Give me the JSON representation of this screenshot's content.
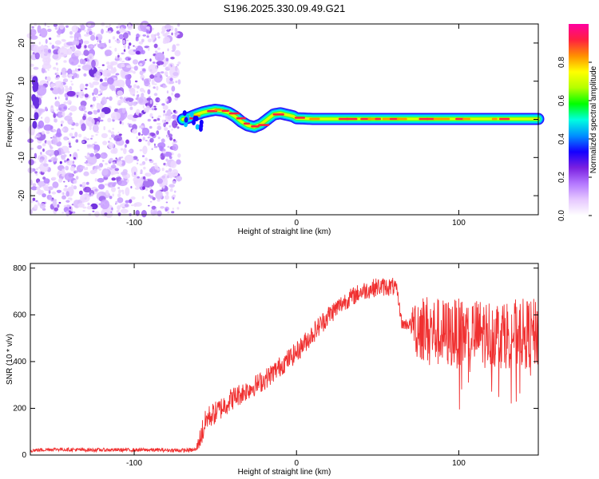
{
  "chart_data": [
    {
      "type": "heatmap",
      "title": "S196.2025.330.09.49.G21",
      "xlabel": "Height of straight line (km)",
      "ylabel": "Frequency (Hz)",
      "xlim": [
        -164,
        149
      ],
      "ylim": [
        -25,
        25
      ],
      "xticks": [
        {
          "v": -100,
          "t": "-100"
        },
        {
          "v": 0,
          "t": "0"
        },
        {
          "v": 100,
          "t": "100"
        }
      ],
      "yticks": [
        {
          "v": -20,
          "t": "-20"
        },
        {
          "v": -10,
          "t": "-10"
        },
        {
          "v": 0,
          "t": "0"
        },
        {
          "v": 10,
          "t": "10"
        },
        {
          "v": 20,
          "t": "20"
        }
      ],
      "noise_region_x": [
        -164,
        -72
      ],
      "ridge": {
        "x": [
          -70,
          -66,
          -62,
          -58,
          -54,
          -50,
          -46,
          -42,
          -38,
          -34,
          -30,
          -26,
          -22,
          -18,
          -14,
          -10,
          -6,
          -2,
          0,
          10,
          40,
          80,
          120,
          149
        ],
        "freq": [
          0.0,
          0.5,
          1.2,
          1.8,
          2.2,
          2.5,
          2.3,
          1.8,
          0.8,
          -0.6,
          -1.6,
          -2.0,
          -1.3,
          0.0,
          1.3,
          1.6,
          1.2,
          0.8,
          0.3,
          0.1,
          0.1,
          0.1,
          0.1,
          0.1
        ]
      },
      "colorbar": {
        "label": "Normalized spectral amplitude",
        "range": [
          0,
          1
        ],
        "ticks": [
          {
            "v": 0.0,
            "t": "0.0"
          },
          {
            "v": 0.2,
            "t": "0.2"
          },
          {
            "v": 0.4,
            "t": "0.4"
          },
          {
            "v": 0.6,
            "t": "0.6"
          },
          {
            "v": 0.8,
            "t": "0.8"
          }
        ],
        "colors": [
          "#ffffff",
          "#e6c8ff",
          "#b478ff",
          "#7a20e0",
          "#1400ff",
          "#0090ff",
          "#00ffe0",
          "#00ff00",
          "#b4ff00",
          "#ffff00",
          "#ff9000",
          "#ff2040",
          "#ff00a0"
        ]
      }
    },
    {
      "type": "line",
      "xlabel": "Height of straight line (km)",
      "ylabel": "SNR (10 * v/v)",
      "xlim": [
        -164,
        149
      ],
      "ylim": [
        0,
        820
      ],
      "xticks": [
        {
          "v": -100,
          "t": "-100"
        },
        {
          "v": 0,
          "t": "0"
        },
        {
          "v": 100,
          "t": "100"
        }
      ],
      "yticks": [
        {
          "v": 0,
          "t": "0"
        },
        {
          "v": 200,
          "t": "200"
        },
        {
          "v": 400,
          "t": "400"
        },
        {
          "v": 600,
          "t": "600"
        },
        {
          "v": 800,
          "t": "800"
        }
      ],
      "line_color": "#f03030",
      "envelope": {
        "x": [
          -164,
          -150,
          -130,
          -110,
          -90,
          -70,
          -62,
          -58,
          -55,
          -50,
          -40,
          -30,
          -20,
          -10,
          0,
          10,
          20,
          30,
          40,
          50,
          60,
          62,
          65,
          70,
          74,
          80,
          90,
          100,
          110,
          120,
          130,
          140,
          149
        ],
        "mean": [
          20,
          25,
          22,
          22,
          22,
          20,
          22,
          100,
          160,
          180,
          240,
          280,
          320,
          380,
          440,
          520,
          600,
          660,
          700,
          720,
          720,
          700,
          560,
          560,
          560,
          540,
          520,
          520,
          520,
          520,
          520,
          520,
          520
        ],
        "noise": [
          8,
          8,
          8,
          8,
          8,
          8,
          10,
          60,
          50,
          50,
          50,
          45,
          45,
          45,
          45,
          45,
          45,
          40,
          40,
          40,
          40,
          30,
          25,
          25,
          150,
          150,
          150,
          150,
          150,
          150,
          150,
          150,
          150
        ]
      }
    }
  ]
}
